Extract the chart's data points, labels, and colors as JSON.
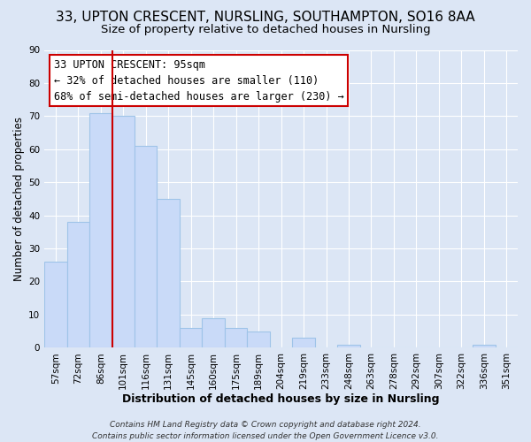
{
  "title1": "33, UPTON CRESCENT, NURSLING, SOUTHAMPTON, SO16 8AA",
  "title2": "Size of property relative to detached houses in Nursling",
  "xlabel": "Distribution of detached houses by size in Nursling",
  "ylabel": "Number of detached properties",
  "bar_labels": [
    "57sqm",
    "72sqm",
    "86sqm",
    "101sqm",
    "116sqm",
    "131sqm",
    "145sqm",
    "160sqm",
    "175sqm",
    "189sqm",
    "204sqm",
    "219sqm",
    "233sqm",
    "248sqm",
    "263sqm",
    "278sqm",
    "292sqm",
    "307sqm",
    "322sqm",
    "336sqm",
    "351sqm"
  ],
  "bar_values": [
    26,
    38,
    71,
    70,
    61,
    45,
    6,
    9,
    6,
    5,
    0,
    3,
    0,
    1,
    0,
    0,
    0,
    0,
    0,
    1,
    0
  ],
  "bar_color": "#c9daf8",
  "bar_edgecolor": "#9fc4e8",
  "ylim": [
    0,
    90
  ],
  "yticks": [
    0,
    10,
    20,
    30,
    40,
    50,
    60,
    70,
    80,
    90
  ],
  "vline_position": 2.5,
  "vline_color": "#cc0000",
  "annotation_line1": "33 UPTON CRESCENT: 95sqm",
  "annotation_line2": "← 32% of detached houses are smaller (110)",
  "annotation_line3": "68% of semi-detached houses are larger (230) →",
  "footer1": "Contains HM Land Registry data © Crown copyright and database right 2024.",
  "footer2": "Contains public sector information licensed under the Open Government Licence v3.0.",
  "bg_color": "#dce6f5",
  "plot_bg_color": "#dce6f5",
  "grid_color": "#ffffff",
  "title1_fontsize": 11,
  "title2_fontsize": 9.5,
  "xlabel_fontsize": 9,
  "ylabel_fontsize": 8.5,
  "tick_fontsize": 7.5,
  "annotation_fontsize": 8.5,
  "footer_fontsize": 6.5
}
